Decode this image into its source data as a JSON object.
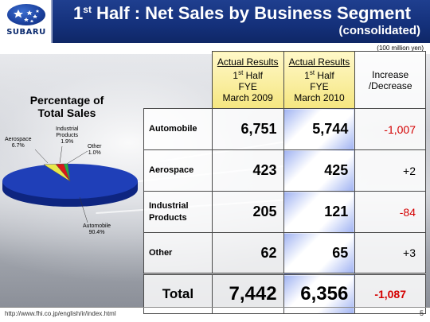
{
  "header": {
    "logo_text": "SUBARU",
    "title_pre": "1",
    "title_sup": "st",
    "title_post": " Half : Net Sales by Business Segment",
    "subtitle": "(consolidated)"
  },
  "units": "(100 million yen)",
  "pie": {
    "title_line1": "Percentage of",
    "title_line2": "Total Sales",
    "slices": [
      {
        "name": "Automobile",
        "pct_label": "90.4%",
        "value": 90.4,
        "color": "#1f3fb8"
      },
      {
        "name": "Aerospace",
        "pct_label": "6.7%",
        "value": 6.7,
        "color": "#e8e84a"
      },
      {
        "name_line1": "Industrial",
        "name_line2": "Products",
        "pct_label": "1.9%",
        "value": 1.9,
        "color": "#d81818"
      },
      {
        "name": "Other",
        "pct_label": "1.0%",
        "value": 1.0,
        "color": "#25b040"
      }
    ]
  },
  "table": {
    "col1": {
      "line1": "Actual Results",
      "line2_pre": "1",
      "line2_sup": "st",
      "line2_post": " Half",
      "line3": "FYE",
      "line4": "March 2009"
    },
    "col2": {
      "line1": "Actual Results",
      "line2_pre": "1",
      "line2_sup": "st",
      "line2_post": " Half",
      "line3": "FYE",
      "line4": "March 2010"
    },
    "col3": {
      "line1": "Increase",
      "line2": "/Decrease"
    },
    "rows": [
      {
        "label_line1": "Automobile",
        "label_line2": "",
        "v2009": "6,751",
        "v2010": "5,744",
        "inc": "-1,007"
      },
      {
        "label_line1": "Aerospace",
        "label_line2": "",
        "v2009": "423",
        "v2010": "425",
        "inc": "+2"
      },
      {
        "label_line1": "Industrial",
        "label_line2": "Products",
        "v2009": "205",
        "v2010": "121",
        "inc": "-84"
      },
      {
        "label_line1": "Other",
        "label_line2": "",
        "v2009": "62",
        "v2010": "65",
        "inc": "+3"
      }
    ],
    "total": {
      "label": "Total",
      "v2009": "7,442",
      "v2010": "6,356",
      "inc": "-1,087"
    }
  },
  "footer": {
    "url": "http://www.fhi.co.jp/english/ir/index.html",
    "page": "5"
  }
}
